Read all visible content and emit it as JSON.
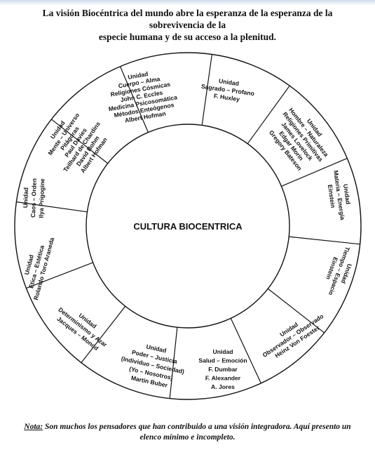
{
  "title": {
    "line1": "La visión Biocéntrica del mundo  abre la esperanza de la esperanza de la sobrevivencia de la",
    "line2": "especie humana y de su acceso a la plenitud."
  },
  "center_label": "CULTURA BIOCENTRICA",
  "sectors": [
    {
      "lines": [
        "Unidad",
        "Sagrado – Profano",
        "F. Huxley"
      ]
    },
    {
      "lines": [
        "Unidad",
        "Hombre – Naturaleza",
        "Religiones Primitivas",
        "James Lovelock",
        "Edgar Morin",
        "Gregory Bateson"
      ]
    },
    {
      "lines": [
        "Unidad",
        "Materia – Energía",
        "Einstein"
      ]
    },
    {
      "lines": [
        "Unidad",
        "Tiempo – Espacio",
        "Einstein"
      ]
    },
    {
      "lines": [
        "Unidad",
        "Observador – Observado",
        "Heinz Von Foester"
      ]
    },
    {
      "lines": [
        "Unidad",
        "Salud – Emoción",
        "F. Dumbar",
        "F. Alexander",
        "A.  Jores"
      ]
    },
    {
      "lines": [
        "Unidad",
        "Poder – Justicia",
        "(Individuo – Sociedad)",
        "(Yo – Nosotros)",
        "Martin Buber"
      ]
    },
    {
      "lines": [
        "Unidad",
        "Determinismo y Azar",
        "Jacques – Monod"
      ]
    },
    {
      "lines": [
        "Unidad",
        "Etica – Estética",
        "Rolando Toro Araneda"
      ]
    },
    {
      "lines": [
        "Unidad",
        "Caos – Orden",
        "Ilya Prigogine"
      ]
    },
    {
      "lines": [
        "Unidad",
        "Mente – Universo",
        "Pitágoras",
        "Paul Davies",
        "Teilhard de Chardins",
        "David Bohm",
        "Albert Hofman"
      ]
    },
    {
      "lines": [
        "Unidad",
        "Cuerpo – Alma",
        "Religiones Cósmicas",
        "John C. Eccles",
        "Medicina  Psicosomática",
        "Métodos Enteógenos",
        "Albert Hofman"
      ]
    }
  ],
  "note": {
    "label": "Nota:",
    "text1": " Son muchos los pensadores que han contribuido a una visión integradora.  Aquí presento un",
    "text2": "elenco mínimo e incompleto."
  }
}
